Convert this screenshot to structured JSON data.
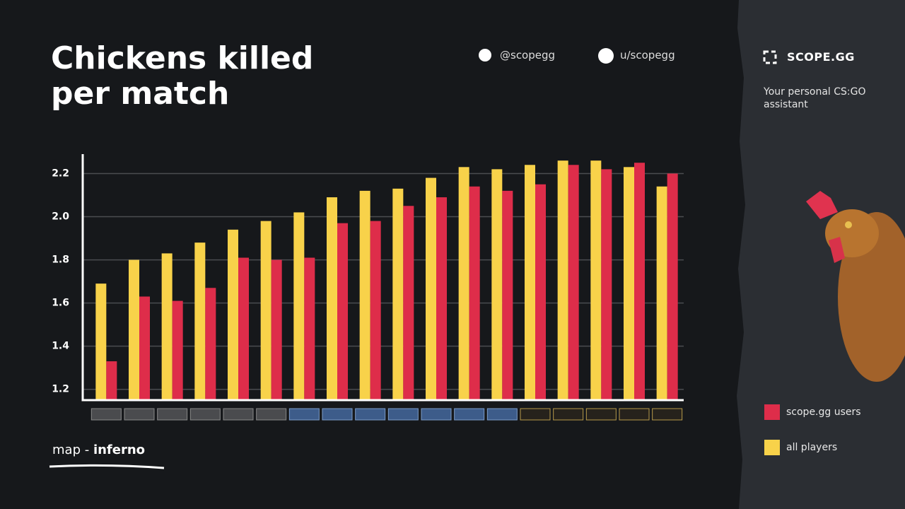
{
  "chart_data": {
    "type": "bar",
    "title": "Chickens killed per match",
    "categories": [
      null,
      null,
      null,
      null,
      null,
      null,
      null,
      null,
      null,
      null,
      null,
      null,
      null,
      null,
      null,
      null,
      null,
      null
    ],
    "series": [
      {
        "name": "all players",
        "color": "#f8d24a",
        "values": [
          1.69,
          1.8,
          1.83,
          1.88,
          1.94,
          1.98,
          2.02,
          2.09,
          2.12,
          2.13,
          2.18,
          2.23,
          2.22,
          2.24,
          2.26,
          2.26,
          2.23,
          2.14
        ]
      },
      {
        "name": "scope.gg users",
        "color": "#de2d4a",
        "values": [
          1.33,
          1.63,
          1.61,
          1.67,
          1.81,
          1.8,
          1.81,
          1.97,
          1.98,
          2.05,
          2.09,
          2.14,
          2.12,
          2.15,
          2.24,
          2.22,
          2.25,
          2.2
        ]
      }
    ],
    "ylim": [
      1.15,
      2.29
    ],
    "yticks": [
      1.2,
      1.4,
      1.6,
      1.8,
      {
        "value": 2,
        "label": "2.0"
      },
      2.2
    ],
    "grid": true
  },
  "social": {
    "twitter": "@scopegg",
    "reddit": "u/scopegg"
  },
  "brand": {
    "name": "SCOPE.GG",
    "tagline": "Your personal CS:GO assistant"
  },
  "map": {
    "prefix": "map - ",
    "name": "inferno"
  }
}
